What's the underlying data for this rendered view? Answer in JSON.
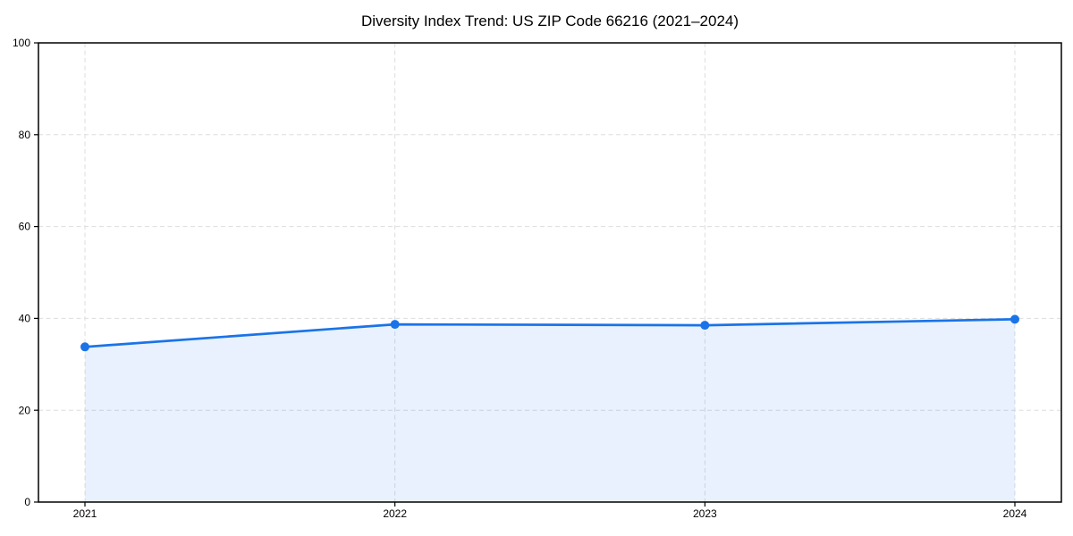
{
  "chart_data": {
    "type": "line",
    "title": "Diversity Index Trend: US ZIP Code 66216 (2021–2024)",
    "categories": [
      "2021",
      "2022",
      "2023",
      "2024"
    ],
    "series": [
      {
        "name": "Diversity Index",
        "values": [
          33.8,
          38.7,
          38.5,
          39.8
        ]
      }
    ],
    "xlabel": "",
    "ylabel": "",
    "ylim": [
      0,
      100
    ],
    "yticks": [
      0,
      20,
      40,
      60,
      80,
      100
    ],
    "grid": true,
    "grid_style": "dashed",
    "legend": "none",
    "colors": {
      "line": "#1a73e8",
      "marker": "#1a73e8",
      "fill": "rgba(26,115,232,0.10)",
      "grid": "#dddddd",
      "spine": "#000000",
      "text": "#000000",
      "background": "#ffffff"
    }
  }
}
